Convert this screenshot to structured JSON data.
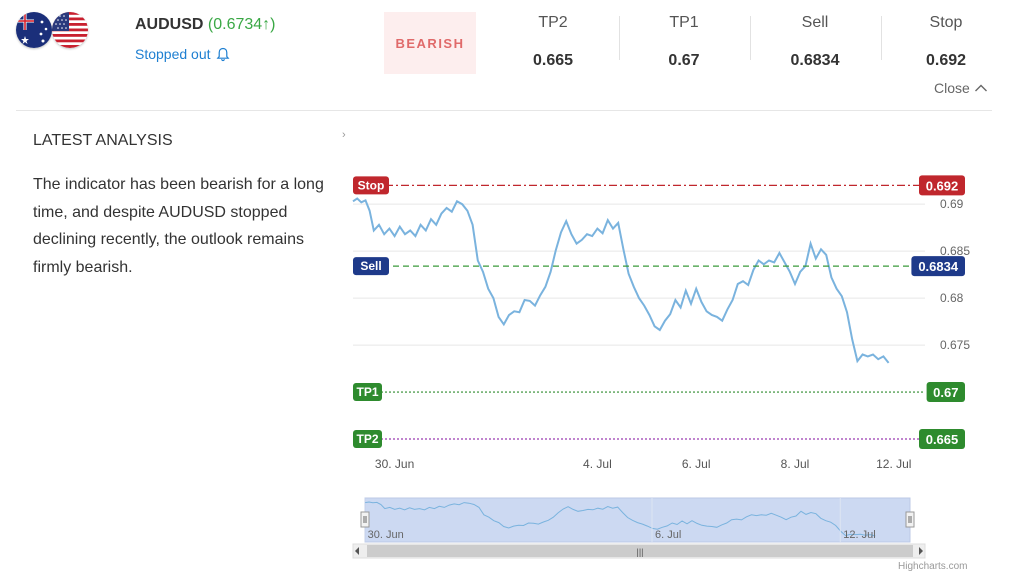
{
  "instrument": {
    "symbol": "AUDUSD",
    "price": "(0.6734↑)",
    "status": "Stopped out",
    "flags": [
      "australia-flag",
      "usa-flag"
    ]
  },
  "signal": {
    "label": "BEARISH",
    "color": "#e06a6a",
    "background": "#fdeeee"
  },
  "levels": [
    {
      "label": "TP2",
      "value": "0.665"
    },
    {
      "label": "TP1",
      "value": "0.67"
    },
    {
      "label": "Sell",
      "value": "0.6834"
    },
    {
      "label": "Stop",
      "value": "0.692"
    }
  ],
  "close_label": "Close",
  "analysis": {
    "title": "LATEST ANALYSIS",
    "text": "The indicator has been bearish for a long time, and despite AUDUSD stopped declining recently, the outlook remains firmly bearish."
  },
  "chart_data": {
    "type": "line",
    "series": [
      {
        "values": [
          [
            0,
            0.6903
          ],
          [
            0.08,
            0.6906
          ],
          [
            0.16,
            0.6902
          ],
          [
            0.24,
            0.6904
          ],
          [
            0.32,
            0.6893
          ],
          [
            0.4,
            0.6872
          ],
          [
            0.5,
            0.6878
          ],
          [
            0.6,
            0.6868
          ],
          [
            0.7,
            0.6874
          ],
          [
            0.8,
            0.6866
          ],
          [
            0.9,
            0.6876
          ],
          [
            1.0,
            0.6868
          ],
          [
            1.1,
            0.6872
          ],
          [
            1.2,
            0.6866
          ],
          [
            1.3,
            0.6878
          ],
          [
            1.4,
            0.6872
          ],
          [
            1.5,
            0.6884
          ],
          [
            1.6,
            0.6878
          ],
          [
            1.7,
            0.689
          ],
          [
            1.8,
            0.6896
          ],
          [
            1.9,
            0.6892
          ],
          [
            2.0,
            0.6903
          ],
          [
            2.1,
            0.69
          ],
          [
            2.2,
            0.6893
          ],
          [
            2.3,
            0.6878
          ],
          [
            2.4,
            0.684
          ],
          [
            2.5,
            0.6828
          ],
          [
            2.6,
            0.681
          ],
          [
            2.7,
            0.68
          ],
          [
            2.8,
            0.678
          ],
          [
            2.9,
            0.6772
          ],
          [
            3.0,
            0.6782
          ],
          [
            3.1,
            0.6786
          ],
          [
            3.2,
            0.6785
          ],
          [
            3.3,
            0.6798
          ],
          [
            3.4,
            0.6797
          ],
          [
            3.5,
            0.6792
          ],
          [
            3.6,
            0.6803
          ],
          [
            3.7,
            0.6812
          ],
          [
            3.8,
            0.6828
          ],
          [
            3.9,
            0.6851
          ],
          [
            4.0,
            0.687
          ],
          [
            4.1,
            0.6882
          ],
          [
            4.2,
            0.6868
          ],
          [
            4.3,
            0.6858
          ],
          [
            4.4,
            0.6862
          ],
          [
            4.5,
            0.6868
          ],
          [
            4.6,
            0.6866
          ],
          [
            4.7,
            0.6874
          ],
          [
            4.8,
            0.6869
          ],
          [
            4.9,
            0.6883
          ],
          [
            5.0,
            0.6874
          ],
          [
            5.1,
            0.688
          ],
          [
            5.2,
            0.6852
          ],
          [
            5.3,
            0.6826
          ],
          [
            5.4,
            0.6812
          ],
          [
            5.5,
            0.68
          ],
          [
            5.6,
            0.6792
          ],
          [
            5.7,
            0.6782
          ],
          [
            5.8,
            0.677
          ],
          [
            5.9,
            0.6766
          ],
          [
            6.0,
            0.6776
          ],
          [
            6.1,
            0.6783
          ],
          [
            6.2,
            0.6798
          ],
          [
            6.3,
            0.679
          ],
          [
            6.4,
            0.6808
          ],
          [
            6.5,
            0.6794
          ],
          [
            6.6,
            0.681
          ],
          [
            6.7,
            0.6796
          ],
          [
            6.8,
            0.6786
          ],
          [
            6.9,
            0.6782
          ],
          [
            7.0,
            0.678
          ],
          [
            7.1,
            0.6776
          ],
          [
            7.2,
            0.6788
          ],
          [
            7.3,
            0.6798
          ],
          [
            7.4,
            0.6815
          ],
          [
            7.5,
            0.6818
          ],
          [
            7.6,
            0.6814
          ],
          [
            7.7,
            0.683
          ],
          [
            7.8,
            0.684
          ],
          [
            7.9,
            0.6836
          ],
          [
            8.0,
            0.684
          ],
          [
            8.1,
            0.6838
          ],
          [
            8.2,
            0.6848
          ],
          [
            8.3,
            0.6838
          ],
          [
            8.4,
            0.6828
          ],
          [
            8.5,
            0.6815
          ],
          [
            8.6,
            0.6828
          ],
          [
            8.7,
            0.6834
          ],
          [
            8.8,
            0.6858
          ],
          [
            8.9,
            0.6842
          ],
          [
            9.0,
            0.6852
          ],
          [
            9.1,
            0.6846
          ],
          [
            9.2,
            0.6822
          ],
          [
            9.3,
            0.681
          ],
          [
            9.4,
            0.6802
          ],
          [
            9.5,
            0.6785
          ],
          [
            9.6,
            0.6756
          ],
          [
            9.7,
            0.6733
          ],
          [
            9.8,
            0.674
          ],
          [
            9.9,
            0.6738
          ],
          [
            10.0,
            0.674
          ],
          [
            10.1,
            0.6735
          ],
          [
            10.2,
            0.6738
          ],
          [
            10.3,
            0.6731
          ]
        ]
      }
    ],
    "x_ticks": [
      {
        "x": 0.8,
        "label": "30. Jun"
      },
      {
        "x": 4.7,
        "label": "4. Jul"
      },
      {
        "x": 6.6,
        "label": "6. Jul"
      },
      {
        "x": 8.5,
        "label": "8. Jul"
      },
      {
        "x": 10.4,
        "label": "12. Jul"
      }
    ],
    "y_ticks": [
      {
        "value": 0.69,
        "label": "0.69"
      },
      {
        "value": 0.685,
        "label": "0.685"
      },
      {
        "value": 0.68,
        "label": "0.68"
      },
      {
        "value": 0.675,
        "label": "0.675"
      }
    ],
    "xlim": [
      0,
      11
    ],
    "ylim": [
      0.6633,
      0.6947
    ],
    "grid": true,
    "plot_lines": [
      {
        "name": "Stop",
        "value": 0.692,
        "label": "0.692",
        "color": "#c0272d",
        "dash": "dash-dot"
      },
      {
        "name": "Sell",
        "value": 0.6834,
        "label": "0.6834",
        "color": "#1e3a8a",
        "line_color": "#3a9a3a",
        "dash": "dash"
      },
      {
        "name": "TP1",
        "value": 0.67,
        "label": "0.67",
        "color": "#2e8b2e",
        "dash": "dot"
      },
      {
        "name": "TP2",
        "value": 0.665,
        "label": "0.665",
        "color": "#2e8b2e",
        "line_color": "#9b3bb0",
        "dash": "dot"
      }
    ],
    "navigator_labels": [
      "30. Jun",
      "6. Jul",
      "12. Jul"
    ],
    "line_color": "#7ab3de",
    "credits": "Highcharts.com"
  }
}
